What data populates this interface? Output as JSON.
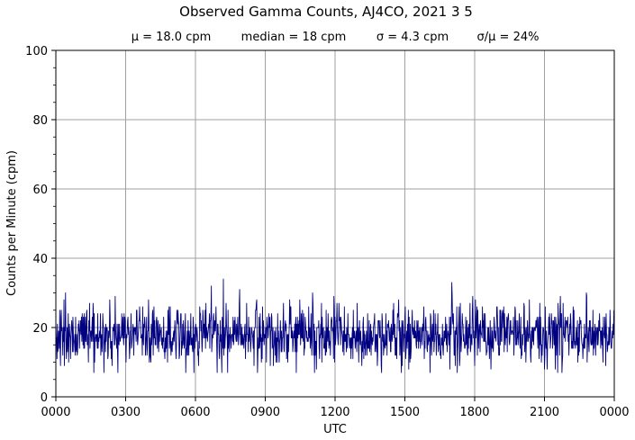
{
  "chart_data": {
    "type": "line",
    "title": "Observed Gamma Counts, AJ4CO, 2021 3 5",
    "subtitle_stats": [
      "μ = 18.0 cpm",
      "median = 18 cpm",
      "σ = 4.3 cpm",
      "σ/μ = 24%"
    ],
    "xlabel": "UTC",
    "ylabel": "Counts per Minute (cpm)",
    "x_tick_labels": [
      "0000",
      "0300",
      "0600",
      "0900",
      "1200",
      "1500",
      "1800",
      "2100",
      "0000"
    ],
    "y_tick_labels": [
      "0",
      "20",
      "40",
      "60",
      "80",
      "100"
    ],
    "xlim_minutes": [
      0,
      1440
    ],
    "ylim": [
      0,
      100
    ],
    "grid": true,
    "series": [
      {
        "color": "#000080",
        "x_start_minute": 0,
        "x_step_minutes": 1,
        "stats": {
          "mean": 18.0,
          "median": 18,
          "std": 4.3,
          "min": 7,
          "max": 34
        },
        "peaks": [
          {
            "minute": 432,
            "value": 34
          },
          {
            "minute": 1021,
            "value": 33
          },
          {
            "minute": 474,
            "value": 31
          },
          {
            "minute": 1368,
            "value": 30
          },
          {
            "minute": 25,
            "value": 30
          },
          {
            "minute": 662,
            "value": 30
          },
          {
            "minute": 401,
            "value": 32
          }
        ],
        "troughs": [
          {
            "minute": 160,
            "value": 7
          },
          {
            "minute": 620,
            "value": 7
          },
          {
            "minute": 840,
            "value": 7
          },
          {
            "minute": 12,
            "value": 9
          },
          {
            "minute": 1260,
            "value": 8
          }
        ]
      }
    ]
  }
}
